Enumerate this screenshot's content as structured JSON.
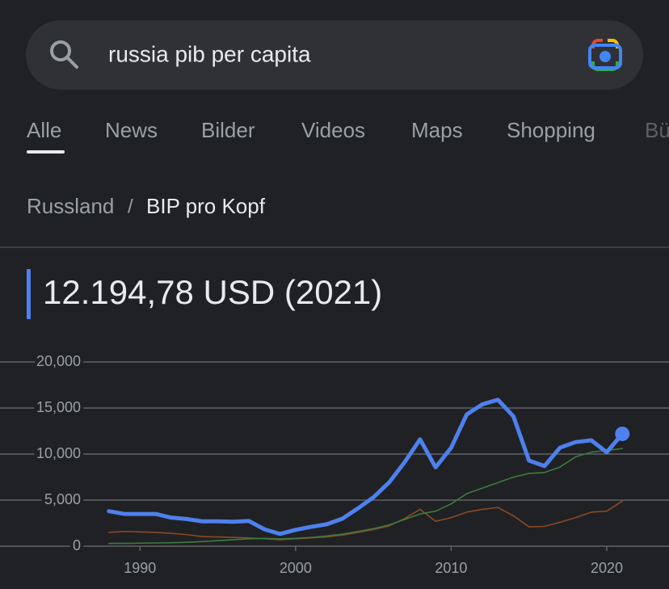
{
  "search": {
    "query": "russia pib per capita"
  },
  "tabs": [
    "Alle",
    "News",
    "Bilder",
    "Videos",
    "Maps",
    "Shopping",
    "Bü"
  ],
  "breadcrumb": {
    "parent": "Russland",
    "separator": "/",
    "current": "BIP pro Kopf"
  },
  "headline": "12.194,78 USD (2021)",
  "chart_data": {
    "type": "line",
    "x": [
      1988,
      1989,
      1990,
      1991,
      1992,
      1993,
      1994,
      1995,
      1996,
      1997,
      1998,
      1999,
      2000,
      2001,
      2002,
      2003,
      2004,
      2005,
      2006,
      2007,
      2008,
      2009,
      2010,
      2011,
      2012,
      2013,
      2014,
      2015,
      2016,
      2017,
      2018,
      2019,
      2020,
      2021
    ],
    "series": [
      {
        "color": "#8a4a22",
        "values": [
          1500,
          1600,
          1550,
          1500,
          1400,
          1250,
          1050,
          1000,
          950,
          900,
          800,
          700,
          800,
          900,
          1000,
          1200,
          1500,
          1800,
          2200,
          3000,
          4000,
          2700,
          3100,
          3700,
          4000,
          4200,
          3300,
          2100,
          2150,
          2600,
          3100,
          3700,
          3800,
          4900
        ]
      },
      {
        "color": "#3d7a3f",
        "values": [
          300,
          300,
          330,
          350,
          380,
          420,
          500,
          600,
          700,
          800,
          850,
          800,
          850,
          950,
          1100,
          1300,
          1600,
          1900,
          2300,
          2900,
          3500,
          3800,
          4600,
          5700,
          6300,
          6900,
          7500,
          7900,
          8000,
          8600,
          9700,
          10200,
          10400,
          10600
        ]
      },
      {
        "name": "Russland",
        "color": "#4e80ee",
        "values": [
          3800,
          3500,
          3500,
          3500,
          3100,
          2950,
          2700,
          2700,
          2650,
          2740,
          1830,
          1330,
          1770,
          2100,
          2380,
          2980,
          4100,
          5300,
          6900,
          9100,
          11600,
          8560,
          10700,
          14300,
          15400,
          15900,
          14100,
          9300,
          8700,
          10700,
          11300,
          11500,
          10200,
          12195
        ]
      }
    ],
    "xlim": [
      1981,
      2024
    ],
    "xticks": [
      1990,
      2000,
      2010,
      2020
    ],
    "ylim": [
      0,
      20000
    ],
    "yticks": [
      0,
      {
        "value": 5000,
        "label": "5,000"
      },
      {
        "value": 10000,
        "label": "10,000"
      },
      {
        "value": 15000,
        "label": "15,000"
      },
      {
        "value": 20000,
        "label": "20,000"
      }
    ],
    "grid": true
  }
}
